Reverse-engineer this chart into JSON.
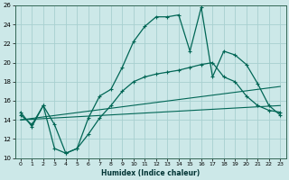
{
  "xlabel": "Humidex (Indice chaleur)",
  "xlim": [
    -0.5,
    23.5
  ],
  "ylim": [
    10,
    26
  ],
  "yticks": [
    10,
    12,
    14,
    16,
    18,
    20,
    22,
    24,
    26
  ],
  "xticks": [
    0,
    1,
    2,
    3,
    4,
    5,
    6,
    7,
    8,
    9,
    10,
    11,
    12,
    13,
    14,
    15,
    16,
    17,
    18,
    19,
    20,
    21,
    22,
    23
  ],
  "bg_color": "#cce8e8",
  "grid_color": "#a8d0d0",
  "line_color": "#006655",
  "curve1_x": [
    0,
    1,
    2,
    3,
    4,
    5,
    6,
    7,
    8,
    9,
    10,
    11,
    12,
    13,
    14,
    15,
    16,
    17,
    18,
    19,
    20,
    21,
    22,
    23
  ],
  "curve1_y": [
    14.8,
    13.3,
    15.5,
    13.5,
    10.5,
    11.0,
    14.2,
    16.5,
    17.2,
    19.5,
    22.2,
    23.8,
    24.8,
    24.8,
    25.0,
    21.2,
    25.8,
    18.5,
    21.2,
    20.8,
    19.8,
    17.8,
    15.5,
    14.5
  ],
  "curve2_x": [
    0,
    1,
    2,
    3,
    4,
    5,
    6,
    7,
    8,
    9,
    10,
    11,
    12,
    13,
    14,
    15,
    16,
    17,
    18,
    19,
    20,
    21,
    22,
    23
  ],
  "curve2_y": [
    14.5,
    13.5,
    15.5,
    11.0,
    10.5,
    11.0,
    12.5,
    14.2,
    15.5,
    17.0,
    18.0,
    18.5,
    18.8,
    19.0,
    19.2,
    19.5,
    19.8,
    20.0,
    18.5,
    18.0,
    16.5,
    15.5,
    15.0,
    14.8
  ],
  "line3_x": [
    0,
    23
  ],
  "line3_y": [
    14.0,
    15.5
  ],
  "line4_x": [
    0,
    23
  ],
  "line4_y": [
    14.0,
    17.5
  ]
}
